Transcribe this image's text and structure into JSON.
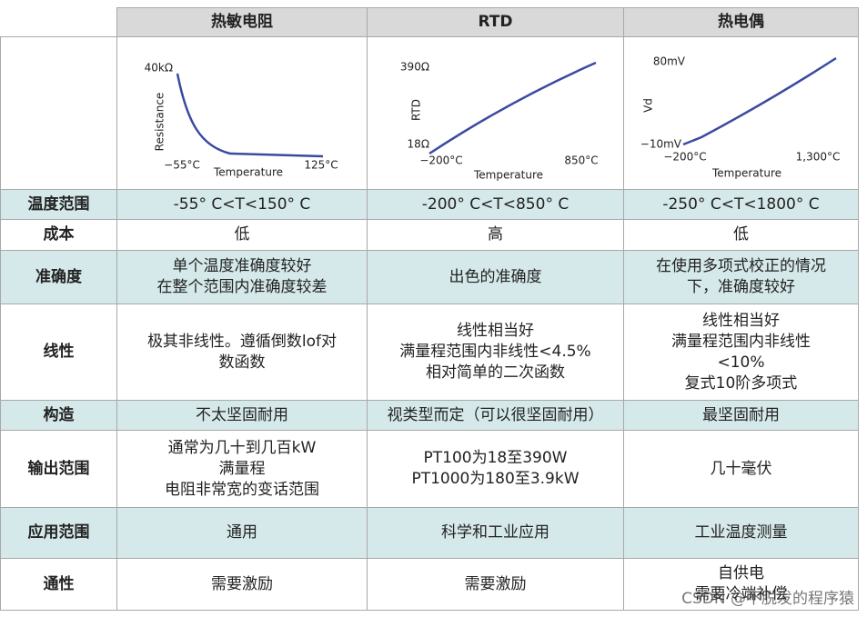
{
  "header": {
    "columns": [
      "热敏电阻",
      "RTD",
      "热电偶"
    ]
  },
  "charts": [
    {
      "y_top": "40kΩ",
      "y_label": "Resistance",
      "x_left": "−55°C",
      "x_label": "Temperature",
      "x_right": "125°C"
    },
    {
      "y_top": "390Ω",
      "y_bottom": "18Ω",
      "y_label": "RTD",
      "x_left": "−200°C",
      "x_label": "Temperature",
      "x_right": "850°C"
    },
    {
      "y_top": "80mV",
      "y_bottom": "−10mV",
      "y_label": "Vd",
      "x_left": "−200°C",
      "x_label": "Temperature",
      "x_right": "1,300°C"
    }
  ],
  "rows": [
    {
      "label": "温度范围",
      "cells": [
        "-55° C<T<150° C",
        "-200° C<T<850° C",
        "-250° C<T<1800° C"
      ]
    },
    {
      "label": "成本",
      "cells": [
        "低",
        "高",
        "低"
      ]
    },
    {
      "label": "准确度",
      "cells": [
        "单个温度准确度较好\n在整个范围内准确度较差",
        "出色的准确度",
        "在使用多项式校正的情况\n下，准确度较好"
      ]
    },
    {
      "label": "线性",
      "cells": [
        "极其非线性。遵循倒数lof对\n数函数",
        "线性相当好\n满量程范围内非线性<4.5%\n相对简单的二次函数",
        "线性相当好\n满量程范围内非线性\n<10%\n复式10阶多项式"
      ]
    },
    {
      "label": "构造",
      "cells": [
        "不太坚固耐用",
        "视类型而定（可以很坚固耐用）",
        "最坚固耐用"
      ]
    },
    {
      "label": "输出范围",
      "cells": [
        "通常为几十到几百kW\n满量程\n电阻非常宽的变话范围",
        "PT100为18至390W\nPT1000为180至3.9kW",
        "几十毫伏"
      ]
    },
    {
      "label": "应用范围",
      "cells": [
        "通用",
        "科学和工业应用",
        "工业温度测量"
      ]
    },
    {
      "label": "通性",
      "cells": [
        "需要激励",
        "需要激励",
        "自供电\n需要冷端补偿"
      ]
    }
  ],
  "watermark": "CSDN @不脱发的程序猿"
}
